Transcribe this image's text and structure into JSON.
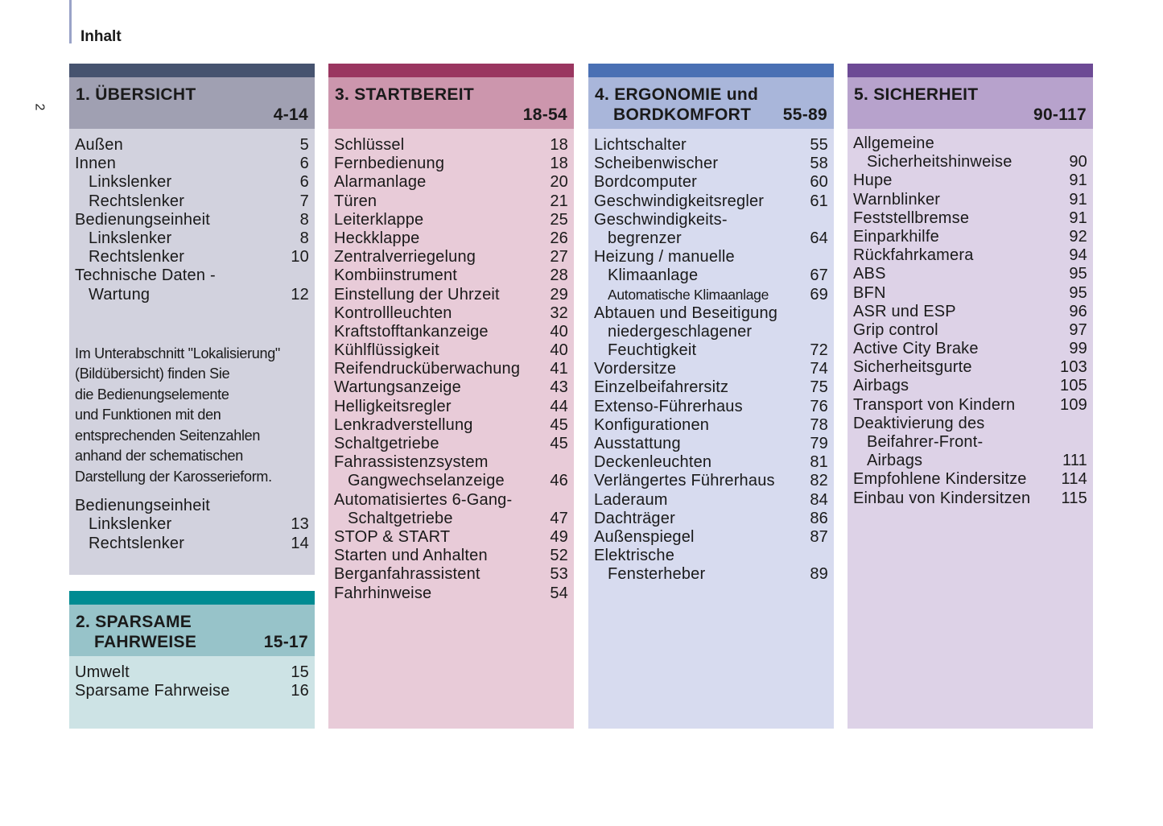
{
  "page": {
    "title": "Inhalt",
    "number": "2"
  },
  "colors": {
    "s1": "#46536f",
    "s2": "#008b92",
    "s3": "#9a3660",
    "s4": "#4a70b4",
    "s5": "#6d4a95"
  },
  "sections": {
    "s1": {
      "title1": "1. ÜBERSICHT",
      "title2": "",
      "pages": "4-14",
      "lines": [
        {
          "t": "Außen",
          "p": "5",
          "i": 0
        },
        {
          "t": "Innen",
          "p": "6",
          "i": 0
        },
        {
          "t": "Linkslenker",
          "p": "6",
          "i": 1
        },
        {
          "t": "Rechtslenker",
          "p": "7",
          "i": 1
        },
        {
          "t": "Bedienungseinheit",
          "p": "8",
          "i": 0
        },
        {
          "t": "Linkslenker",
          "p": "8",
          "i": 1
        },
        {
          "t": "Rechtslenker",
          "p": "10",
          "i": 1
        },
        {
          "t": "Technische Daten -",
          "p": "",
          "i": 0
        },
        {
          "t": "Wartung",
          "p": "12",
          "i": 1
        }
      ],
      "paragraph": [
        "Im Unterabschnitt \"Lokalisierung\"",
        "(Bildübersicht) finden Sie",
        "die Bedienungselemente",
        "und Funktionen mit den",
        "entsprechenden Seitenzahlen",
        "anhand der schematischen",
        "Darstellung der Karosserieform."
      ],
      "lines2": [
        {
          "t": "Bedienungseinheit",
          "p": "",
          "i": 0
        },
        {
          "t": "Linkslenker",
          "p": "13",
          "i": 1
        },
        {
          "t": "Rechtslenker",
          "p": "14",
          "i": 1
        }
      ]
    },
    "s2": {
      "title1": "2. SPARSAME",
      "title2": "FAHRWEISE",
      "pages": "15-17",
      "lines": [
        {
          "t": "Umwelt",
          "p": "15",
          "i": 0
        },
        {
          "t": "Sparsame Fahrweise",
          "p": "16",
          "i": 0
        }
      ]
    },
    "s3": {
      "title1": "3.  STARTBEREIT",
      "title2": "",
      "pages": "18-54",
      "lines": [
        {
          "t": "Schlüssel",
          "p": "18",
          "i": 0
        },
        {
          "t": "Fernbedienung",
          "p": "18",
          "i": 0
        },
        {
          "t": "Alarmanlage",
          "p": "20",
          "i": 0
        },
        {
          "t": "Türen",
          "p": "21",
          "i": 0
        },
        {
          "t": "Leiterklappe",
          "p": "25",
          "i": 0
        },
        {
          "t": "Heckklappe",
          "p": "26",
          "i": 0
        },
        {
          "t": "Zentralverriegelung",
          "p": "27",
          "i": 0
        },
        {
          "t": "Kombiinstrument",
          "p": "28",
          "i": 0
        },
        {
          "t": "Einstellung der Uhrzeit",
          "p": "29",
          "i": 0
        },
        {
          "t": "Kontrollleuchten",
          "p": "32",
          "i": 0
        },
        {
          "t": "Kraftstofftankanzeige",
          "p": "40",
          "i": 0
        },
        {
          "t": "Kühlflüssigkeit",
          "p": "40",
          "i": 0
        },
        {
          "t": "Reifendrucküberwachung",
          "p": "41",
          "i": 0
        },
        {
          "t": "Wartungsanzeige",
          "p": "43",
          "i": 0
        },
        {
          "t": "Helligkeitsregler",
          "p": "44",
          "i": 0
        },
        {
          "t": "Lenkradverstellung",
          "p": "45",
          "i": 0
        },
        {
          "t": "Schaltgetriebe",
          "p": "45",
          "i": 0
        },
        {
          "t": "Fahrassistenzsystem",
          "p": "",
          "i": 0
        },
        {
          "t": "Gangwechselanzeige",
          "p": "46",
          "i": 1
        },
        {
          "t": "Automatisiertes 6-Gang-",
          "p": "",
          "i": 0
        },
        {
          "t": "Schaltgetriebe",
          "p": "47",
          "i": 1
        },
        {
          "t": "STOP & START",
          "p": "49",
          "i": 0
        },
        {
          "t": "Starten und Anhalten",
          "p": "52",
          "i": 0
        },
        {
          "t": "Berganfahrassistent",
          "p": "53",
          "i": 0
        },
        {
          "t": "Fahrhinweise",
          "p": "54",
          "i": 0
        }
      ]
    },
    "s4": {
      "title1": "4. ERGONOMIE und",
      "title2": "BORDKOMFORT",
      "pages": "55-89",
      "lines": [
        {
          "t": "Lichtschalter",
          "p": "55",
          "i": 0
        },
        {
          "t": "Scheibenwischer",
          "p": "58",
          "i": 0
        },
        {
          "t": "Bordcomputer",
          "p": "60",
          "i": 0
        },
        {
          "t": "Geschwindigkeitsregler",
          "p": "61",
          "i": 0
        },
        {
          "t": "Geschwindigkeits-",
          "p": "",
          "i": 0
        },
        {
          "t": "begrenzer",
          "p": "64",
          "i": 1
        },
        {
          "t": "Heizung / manuelle",
          "p": "",
          "i": 0
        },
        {
          "t": "Klimaanlage",
          "p": "67",
          "i": 1
        },
        {
          "t": "Automatische Klimaanlage",
          "p": "69",
          "i": 1,
          "small": true
        },
        {
          "t": "Abtauen und Beseitigung",
          "p": "",
          "i": 0
        },
        {
          "t": "niedergeschlagener",
          "p": "",
          "i": 1
        },
        {
          "t": "Feuchtigkeit",
          "p": "72",
          "i": 1
        },
        {
          "t": "Vordersitze",
          "p": "74",
          "i": 0
        },
        {
          "t": "Einzelbeifahrersitz",
          "p": "75",
          "i": 0
        },
        {
          "t": "Extenso-Führerhaus",
          "p": "76",
          "i": 0
        },
        {
          "t": "Konfigurationen",
          "p": "78",
          "i": 0
        },
        {
          "t": "Ausstattung",
          "p": "79",
          "i": 0
        },
        {
          "t": "Deckenleuchten",
          "p": "81",
          "i": 0
        },
        {
          "t": "Verlängertes Führerhaus",
          "p": "82",
          "i": 0
        },
        {
          "t": "Laderaum",
          "p": "84",
          "i": 0
        },
        {
          "t": "Dachträger",
          "p": "86",
          "i": 0
        },
        {
          "t": "Außenspiegel",
          "p": "87",
          "i": 0
        },
        {
          "t": "Elektrische",
          "p": "",
          "i": 0
        },
        {
          "t": "Fensterheber",
          "p": "89",
          "i": 1
        }
      ]
    },
    "s5": {
      "title1": "5. SICHERHEIT",
      "title2": "",
      "pages": "90-117",
      "lines": [
        {
          "t": "Allgemeine",
          "p": "",
          "i": 0
        },
        {
          "t": "Sicherheitshinweise",
          "p": "90",
          "i": 1
        },
        {
          "t": "Hupe",
          "p": "91",
          "i": 0
        },
        {
          "t": "Warnblinker",
          "p": "91",
          "i": 0
        },
        {
          "t": "Feststellbremse",
          "p": "91",
          "i": 0
        },
        {
          "t": "Einparkhilfe",
          "p": "92",
          "i": 0
        },
        {
          "t": "Rückfahrkamera",
          "p": "94",
          "i": 0
        },
        {
          "t": "ABS",
          "p": "95",
          "i": 0
        },
        {
          "t": "BFN",
          "p": "95",
          "i": 0
        },
        {
          "t": "ASR und ESP",
          "p": "96",
          "i": 0
        },
        {
          "t": "Grip control",
          "p": "97",
          "i": 0
        },
        {
          "t": "Active City Brake",
          "p": "99",
          "i": 0
        },
        {
          "t": "Sicherheitsgurte",
          "p": "103",
          "i": 0
        },
        {
          "t": "Airbags",
          "p": "105",
          "i": 0
        },
        {
          "t": "Transport von Kindern",
          "p": "109",
          "i": 0
        },
        {
          "t": "Deaktivierung des",
          "p": "",
          "i": 0
        },
        {
          "t": "Beifahrer-Front-",
          "p": "",
          "i": 1
        },
        {
          "t": "Airbags",
          "p": "111",
          "i": 1
        },
        {
          "t": "Empfohlene Kindersitze",
          "p": "114",
          "i": 0
        },
        {
          "t": "Einbau von Kindersitzen",
          "p": "115",
          "i": 0
        }
      ]
    }
  }
}
